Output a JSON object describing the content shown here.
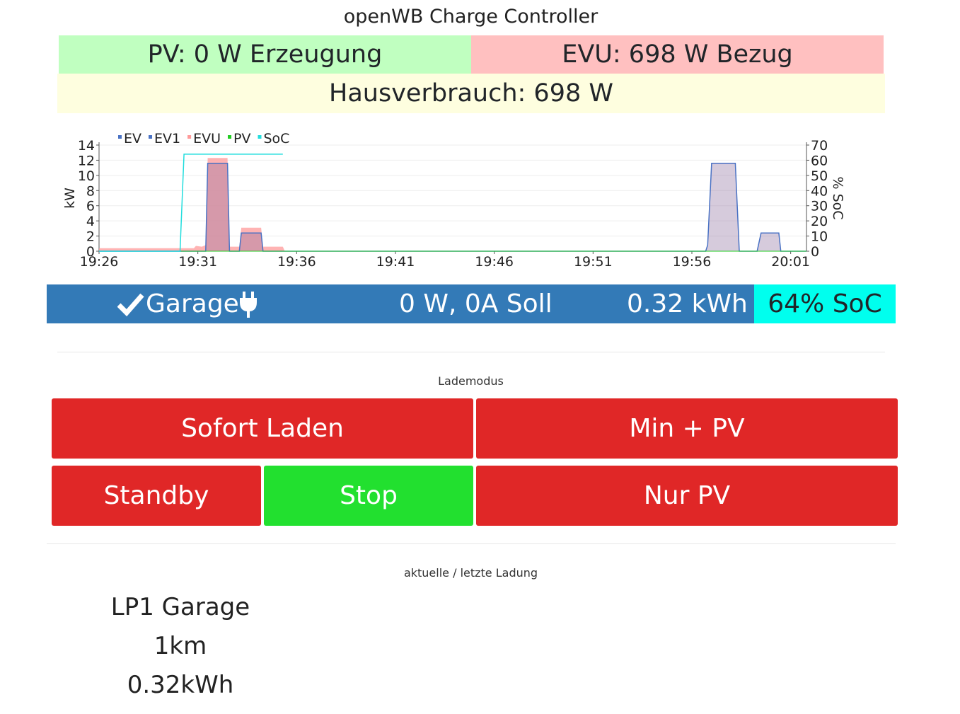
{
  "header": {
    "title": "openWB Charge Controller"
  },
  "summary": {
    "pv": "PV: 0 W Erzeugung",
    "evu": "EVU: 698 W Bezug",
    "haus": "Hausverbrauch: 698 W"
  },
  "chart_data": {
    "type": "area",
    "legend": [
      "EV",
      "EV1",
      "EVU",
      "PV",
      "SoC"
    ],
    "legend_placement": "top-left",
    "ylabel": "kW",
    "y2label": "% SoC",
    "ylim": [
      0,
      14
    ],
    "y2lim": [
      0,
      70
    ],
    "yticks": [
      "0",
      "2",
      "4",
      "6",
      "8",
      "10",
      "12",
      "14"
    ],
    "y2ticks": [
      "0",
      "10",
      "20",
      "30",
      "40",
      "50",
      "60",
      "70"
    ],
    "xticks": [
      "19:26",
      "19:31",
      "19:36",
      "19:41",
      "19:46",
      "19:51",
      "19:56",
      "20:01"
    ],
    "xlim_minutes": [
      0,
      35.8
    ],
    "colors": {
      "EV": "#4a72c4",
      "EV1": "#4a72c4",
      "EVU": "#ff9a9a",
      "PV": "#22cc22",
      "SoC": "#22dddd"
    },
    "series": [
      {
        "name": "EVU",
        "points": [
          [
            0,
            0.4
          ],
          [
            4.8,
            0.4
          ],
          [
            4.9,
            0.7
          ],
          [
            5.2,
            0.6
          ],
          [
            5.4,
            0.8
          ],
          [
            5.5,
            12.3
          ],
          [
            6.5,
            12.3
          ],
          [
            6.6,
            0.6
          ],
          [
            7.1,
            0.6
          ],
          [
            7.2,
            3.1
          ],
          [
            8.2,
            3.1
          ],
          [
            8.3,
            0.6
          ],
          [
            9.3,
            0.6
          ],
          [
            9.4,
            0
          ],
          [
            35.8,
            0
          ]
        ]
      },
      {
        "name": "EV",
        "points": [
          [
            0,
            0
          ],
          [
            5.4,
            0
          ],
          [
            5.5,
            11.6
          ],
          [
            6.5,
            11.6
          ],
          [
            6.6,
            0
          ],
          [
            7.1,
            0
          ],
          [
            7.2,
            2.4
          ],
          [
            8.2,
            2.4
          ],
          [
            8.3,
            0
          ],
          [
            30.7,
            0
          ],
          [
            30.8,
            0.8
          ],
          [
            31.0,
            11.6
          ],
          [
            32.2,
            11.6
          ],
          [
            32.4,
            0
          ],
          [
            33.3,
            0
          ],
          [
            33.5,
            2.4
          ],
          [
            34.4,
            2.4
          ],
          [
            34.5,
            0
          ],
          [
            35.8,
            0
          ]
        ]
      },
      {
        "name": "PV",
        "points": [
          [
            0,
            0
          ],
          [
            35.8,
            0
          ]
        ]
      },
      {
        "name": "SoC",
        "points": [
          [
            0,
            0
          ],
          [
            4.1,
            0
          ],
          [
            4.3,
            64
          ],
          [
            9.3,
            64
          ]
        ]
      }
    ]
  },
  "loadpoint": {
    "name": "Garage",
    "power": "0 W, 0A Soll",
    "energy": "0.32 kWh",
    "soc": "64% SoC"
  },
  "lademodus": {
    "label": "Lademodus",
    "sofort": "Sofort Laden",
    "minpv": "Min + PV",
    "standby": "Standby",
    "stop": "Stop",
    "nurpv": "Nur PV"
  },
  "last_charge": {
    "label": "aktuelle / letzte Ladung",
    "name": "LP1 Garage",
    "km": "1km",
    "kwh": "0.32kWh"
  }
}
